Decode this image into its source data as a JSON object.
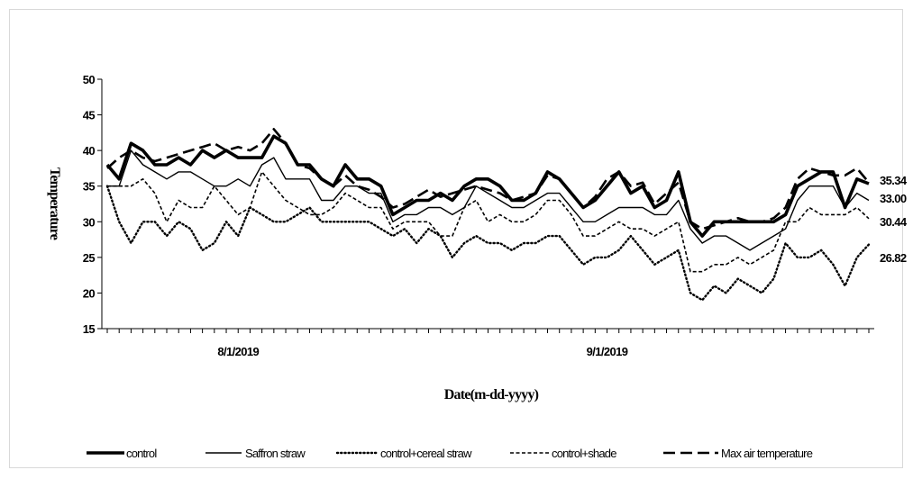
{
  "chart_data": {
    "type": "line",
    "xlabel": "Date(m-dd-yyyy)",
    "ylabel": "Temperature",
    "ylim": [
      15,
      50
    ],
    "yticks": [
      15,
      20,
      25,
      30,
      35,
      40,
      45,
      50
    ],
    "x_tick_labels": [
      {
        "label": "8/1/2019",
        "index": 11
      },
      {
        "label": "9/1/2019",
        "index": 42
      }
    ],
    "grid": false,
    "legend_position": "bottom",
    "end_labels": [
      "35.34",
      "33.00",
      "30.44",
      "26.82"
    ],
    "series": [
      {
        "name": "control",
        "style": "thick-solid",
        "values": [
          38,
          36,
          41,
          40,
          38,
          38,
          39,
          38,
          40,
          39,
          40,
          39,
          39,
          39,
          42,
          41,
          38,
          38,
          36,
          35,
          38,
          36,
          36,
          35,
          31,
          32,
          33,
          33,
          34,
          33,
          35,
          36,
          36,
          35,
          33,
          33,
          34,
          37,
          36,
          34,
          32,
          33,
          35,
          37,
          34,
          35,
          32,
          33,
          37,
          30,
          28,
          30,
          30,
          30,
          30,
          30,
          30,
          31,
          35,
          36,
          37,
          37,
          32,
          36,
          35.34
        ]
      },
      {
        "name": "Saffron straw",
        "style": "thin-solid",
        "values": [
          35,
          35,
          40,
          38,
          37,
          36,
          37,
          37,
          36,
          35,
          35,
          36,
          35,
          38,
          39,
          36,
          36,
          36,
          33,
          33,
          35,
          35,
          34,
          34,
          30,
          31,
          31,
          32,
          32,
          31,
          32,
          35,
          34,
          33,
          32,
          32,
          33,
          34,
          34,
          32,
          30,
          30,
          31,
          32,
          32,
          32,
          31,
          31,
          33,
          29,
          27,
          28,
          28,
          27,
          26,
          27,
          28,
          29,
          33,
          35,
          35,
          35,
          32,
          34,
          33.0
        ]
      },
      {
        "name": "control+cereal straw",
        "style": "dotted",
        "values": [
          35,
          30,
          27,
          30,
          30,
          28,
          30,
          29,
          26,
          27,
          30,
          28,
          32,
          31,
          30,
          30,
          31,
          32,
          30,
          30,
          30,
          30,
          30,
          29,
          28,
          29,
          27,
          29,
          28,
          25,
          27,
          28,
          27,
          27,
          26,
          27,
          27,
          28,
          28,
          26,
          24,
          25,
          25,
          26,
          28,
          26,
          24,
          25,
          26,
          20,
          19,
          21,
          20,
          22,
          21,
          20,
          22,
          27,
          25,
          25,
          26,
          24,
          21,
          25,
          26.82
        ]
      },
      {
        "name": "control+shade",
        "style": "short-dash",
        "values": [
          35,
          35,
          35,
          36,
          34,
          30,
          33,
          32,
          32,
          35,
          33,
          31,
          32,
          37,
          35,
          33,
          32,
          31,
          31,
          32,
          34,
          33,
          32,
          32,
          29,
          30,
          30,
          30,
          28,
          28,
          32,
          33,
          30,
          31,
          30,
          30,
          31,
          33,
          33,
          31,
          28,
          28,
          29,
          30,
          29,
          29,
          28,
          29,
          30,
          23,
          23,
          24,
          24,
          25,
          24,
          25,
          26,
          30,
          30,
          32,
          31,
          31,
          31,
          32,
          30.44
        ]
      },
      {
        "name": "Max air temperature",
        "style": "long-dash",
        "values": [
          37.5,
          39,
          40,
          39,
          38.5,
          39,
          39.5,
          40,
          40.5,
          41,
          40,
          40.5,
          40,
          41,
          43,
          41,
          38,
          37.5,
          36,
          35,
          36.5,
          35,
          34.5,
          33.5,
          32,
          32.5,
          33.5,
          34.5,
          33.5,
          34,
          34.5,
          35,
          34.5,
          34,
          33,
          33.5,
          34,
          36.5,
          36,
          34,
          32,
          33.5,
          36,
          37,
          35,
          35.5,
          32.5,
          34,
          35.5,
          30,
          29,
          29.5,
          30,
          30.5,
          30,
          30,
          30.5,
          32,
          36,
          37.5,
          37,
          36.5,
          36.5,
          37.5,
          35.5
        ]
      }
    ]
  }
}
